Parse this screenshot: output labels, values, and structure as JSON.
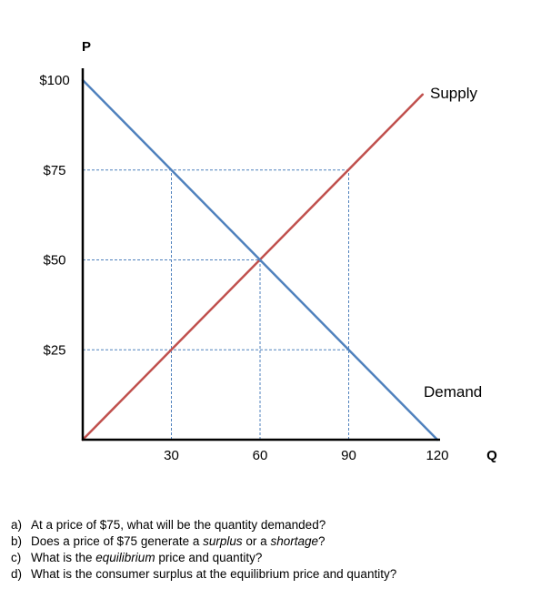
{
  "chart_data": {
    "type": "line",
    "xlabel": "Q",
    "ylabel": "P",
    "xlim": [
      0,
      120
    ],
    "ylim": [
      0,
      100
    ],
    "x_ticks": [
      {
        "value": 30,
        "label": "30"
      },
      {
        "value": 60,
        "label": "60"
      },
      {
        "value": 90,
        "label": "90"
      },
      {
        "value": 120,
        "label": "120"
      }
    ],
    "y_ticks": [
      {
        "value": 25,
        "label": "$25"
      },
      {
        "value": 50,
        "label": "$50"
      },
      {
        "value": 75,
        "label": "$75"
      },
      {
        "value": 100,
        "label": "$100"
      }
    ],
    "series": [
      {
        "name": "Supply",
        "color": "#c0504d",
        "points": [
          [
            0,
            0
          ],
          [
            115,
            96
          ]
        ]
      },
      {
        "name": "Demand",
        "color": "#4f81bd",
        "points": [
          [
            0,
            100
          ],
          [
            120,
            0
          ]
        ]
      }
    ],
    "guide_lines": [
      {
        "type": "horizontal",
        "y": 75,
        "x_to": 90
      },
      {
        "type": "horizontal",
        "y": 50,
        "x_to": 60
      },
      {
        "type": "horizontal",
        "y": 25,
        "x_to": 90
      },
      {
        "type": "vertical",
        "x": 30,
        "y_to": 75
      },
      {
        "type": "vertical",
        "x": 60,
        "y_to": 50
      },
      {
        "type": "vertical",
        "x": 90,
        "y_to": 75
      }
    ],
    "guide_color": "#4f81bd",
    "grid": false,
    "legend": "none"
  },
  "questions": [
    {
      "marker": "a)",
      "parts": [
        {
          "text": "At a price of $75, what will be the quantity demanded?",
          "italic": false
        }
      ]
    },
    {
      "marker": "b)",
      "parts": [
        {
          "text": "Does a price of $75 generate a ",
          "italic": false
        },
        {
          "text": "surplus",
          "italic": true
        },
        {
          "text": " or a ",
          "italic": false
        },
        {
          "text": "shortage",
          "italic": true
        },
        {
          "text": "?",
          "italic": false
        }
      ]
    },
    {
      "marker": "c)",
      "parts": [
        {
          "text": "What is the ",
          "italic": false
        },
        {
          "text": "equilibrium",
          "italic": true
        },
        {
          "text": " price and quantity?",
          "italic": false
        }
      ]
    },
    {
      "marker": "d)",
      "parts": [
        {
          "text": "What is the consumer surplus at the equilibrium price and quantity?",
          "italic": false
        }
      ]
    }
  ]
}
